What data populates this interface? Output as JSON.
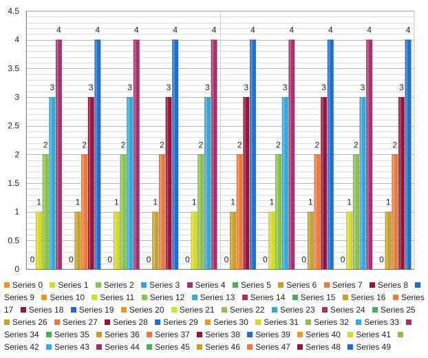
{
  "chart_data": {
    "type": "bar",
    "title": "",
    "xlabel": "",
    "ylabel": "",
    "ylim": [
      0,
      4.5
    ],
    "yticks": [
      "0",
      "0.5",
      "1",
      "1.5",
      "2",
      "2.5",
      "3",
      "3.5",
      "4",
      "4.5"
    ],
    "grid": true,
    "legend_position": "bottom",
    "group_count": 10,
    "series_per_group": 5,
    "series": [
      {
        "name": "Series 0",
        "value": 0,
        "label": "0"
      },
      {
        "name": "Series 1",
        "value": 1,
        "label": "1"
      },
      {
        "name": "Series 2",
        "value": 2,
        "label": "2"
      },
      {
        "name": "Series 3",
        "value": 3,
        "label": "3"
      },
      {
        "name": "Series 4",
        "value": 4,
        "label": "4"
      },
      {
        "name": "Series 5",
        "value": 0,
        "label": "0"
      },
      {
        "name": "Series 6",
        "value": 1,
        "label": "1"
      },
      {
        "name": "Series 7",
        "value": 2,
        "label": "2"
      },
      {
        "name": "Series 8",
        "value": 3,
        "label": "3"
      },
      {
        "name": "Series 9",
        "value": 4,
        "label": "4"
      },
      {
        "name": "Series 10",
        "value": 0,
        "label": "0"
      },
      {
        "name": "Series 11",
        "value": 1,
        "label": "1"
      },
      {
        "name": "Series 12",
        "value": 2,
        "label": "2"
      },
      {
        "name": "Series 13",
        "value": 3,
        "label": "3"
      },
      {
        "name": "Series 14",
        "value": 4,
        "label": "4"
      },
      {
        "name": "Series 15",
        "value": 0,
        "label": "0"
      },
      {
        "name": "Series 16",
        "value": 1,
        "label": "1"
      },
      {
        "name": "Series 17",
        "value": 2,
        "label": "2"
      },
      {
        "name": "Series 18",
        "value": 3,
        "label": "3"
      },
      {
        "name": "Series 19",
        "value": 4,
        "label": "4"
      },
      {
        "name": "Series 20",
        "value": 0,
        "label": "0"
      },
      {
        "name": "Series 21",
        "value": 1,
        "label": "1"
      },
      {
        "name": "Series 22",
        "value": 2,
        "label": "2"
      },
      {
        "name": "Series 23",
        "value": 3,
        "label": "3"
      },
      {
        "name": "Series 24",
        "value": 4,
        "label": "4"
      },
      {
        "name": "Series 25",
        "value": 0,
        "label": "0"
      },
      {
        "name": "Series 26",
        "value": 1,
        "label": "1"
      },
      {
        "name": "Series 27",
        "value": 2,
        "label": "2"
      },
      {
        "name": "Series 28",
        "value": 3,
        "label": "3"
      },
      {
        "name": "Series 29",
        "value": 4,
        "label": "4"
      },
      {
        "name": "Series 30",
        "value": 0,
        "label": "0"
      },
      {
        "name": "Series 31",
        "value": 1,
        "label": "1"
      },
      {
        "name": "Series 32",
        "value": 2,
        "label": "2"
      },
      {
        "name": "Series 33",
        "value": 3,
        "label": "3"
      },
      {
        "name": "Series 34",
        "value": 4,
        "label": "4"
      },
      {
        "name": "Series 35",
        "value": 0,
        "label": "0"
      },
      {
        "name": "Series 36",
        "value": 1,
        "label": "1"
      },
      {
        "name": "Series 37",
        "value": 2,
        "label": "2"
      },
      {
        "name": "Series 38",
        "value": 3,
        "label": "3"
      },
      {
        "name": "Series 39",
        "value": 4,
        "label": "4"
      },
      {
        "name": "Series 40",
        "value": 0,
        "label": "0"
      },
      {
        "name": "Series 41",
        "value": 1,
        "label": "1"
      },
      {
        "name": "Series 42",
        "value": 2,
        "label": "2"
      },
      {
        "name": "Series 43",
        "value": 3,
        "label": "3"
      },
      {
        "name": "Series 44",
        "value": 4,
        "label": "4"
      },
      {
        "name": "Series 45",
        "value": 0,
        "label": "0"
      },
      {
        "name": "Series 46",
        "value": 1,
        "label": "1"
      },
      {
        "name": "Series 47",
        "value": 2,
        "label": "2"
      },
      {
        "name": "Series 48",
        "value": 3,
        "label": "3"
      },
      {
        "name": "Series 49",
        "value": 4,
        "label": "4"
      }
    ],
    "palette": [
      "#f39422",
      "#d5dc26",
      "#8bc34a",
      "#33aadd",
      "#a8316d",
      "#4caf50",
      "#c9a227",
      "#ee7a3a",
      "#99143c",
      "#1e6fd0",
      "#f39422",
      "#d5dc26",
      "#8bc34a",
      "#33aadd",
      "#a8316d",
      "#4caf50",
      "#c9a227",
      "#ee7a3a",
      "#99143c",
      "#1e6fd0"
    ]
  }
}
